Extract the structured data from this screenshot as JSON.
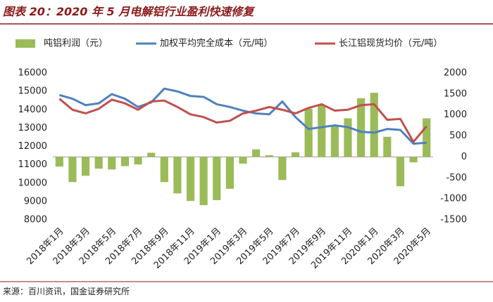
{
  "title": "图表 20：2020 年 5 月电解铝行业盈利快速修复",
  "source": "来源：百川资讯，国金证券研究所",
  "chart_data": {
    "type": "bar-line",
    "categories": [
      "2018年1月",
      null,
      "2018年3月",
      null,
      "2018年5月",
      null,
      "2018年7月",
      null,
      "2018年9月",
      null,
      "2018年11月",
      null,
      "2019年1月",
      null,
      "2019年3月",
      null,
      "2019年5月",
      null,
      "2019年7月",
      null,
      "2019年9月",
      null,
      "2019年11月",
      null,
      "2020年1月",
      null,
      "2020年3月",
      null,
      "2020年5月"
    ],
    "series": [
      {
        "name": "吨铝利润（元）",
        "type": "bar",
        "axis": "y2",
        "color": "#9bbb59",
        "values": [
          -230,
          -600,
          -450,
          -280,
          -300,
          -220,
          -180,
          100,
          -600,
          -870,
          -1050,
          -1150,
          -1030,
          -760,
          -160,
          180,
          40,
          -550,
          110,
          1150,
          1230,
          730,
          920,
          1400,
          1530,
          480,
          -700,
          -130,
          920
        ]
      },
      {
        "name": "加权平均完全成本（元/吨）",
        "type": "line",
        "color": "#4f81bd",
        "values": [
          14800,
          14600,
          14250,
          14350,
          14850,
          14600,
          14150,
          14400,
          15150,
          15000,
          14750,
          14700,
          14300,
          14150,
          13950,
          13800,
          13750,
          14450,
          13600,
          12950,
          13050,
          13150,
          13050,
          12800,
          12750,
          12950,
          12900,
          12150,
          12200
        ]
      },
      {
        "name": "长江铝现货均价（元/吨）",
        "type": "line",
        "color": "#c0504d",
        "values": [
          14600,
          14000,
          13800,
          14050,
          14550,
          14350,
          14000,
          14450,
          14500,
          14150,
          13750,
          13600,
          13300,
          13400,
          13800,
          13950,
          14150,
          14000,
          13800,
          14100,
          14300,
          13950,
          14000,
          14250,
          14300,
          13450,
          13500,
          12250,
          13100
        ]
      }
    ],
    "ylim": [
      8000,
      16000
    ],
    "yticks": [
      8000,
      9000,
      10000,
      11000,
      12000,
      13000,
      14000,
      15000,
      16000
    ],
    "y2lim": [
      -1500,
      2000
    ],
    "y2ticks": [
      -1500,
      -1000,
      -500,
      0,
      500,
      1000,
      1500,
      2000
    ],
    "grid": false
  }
}
